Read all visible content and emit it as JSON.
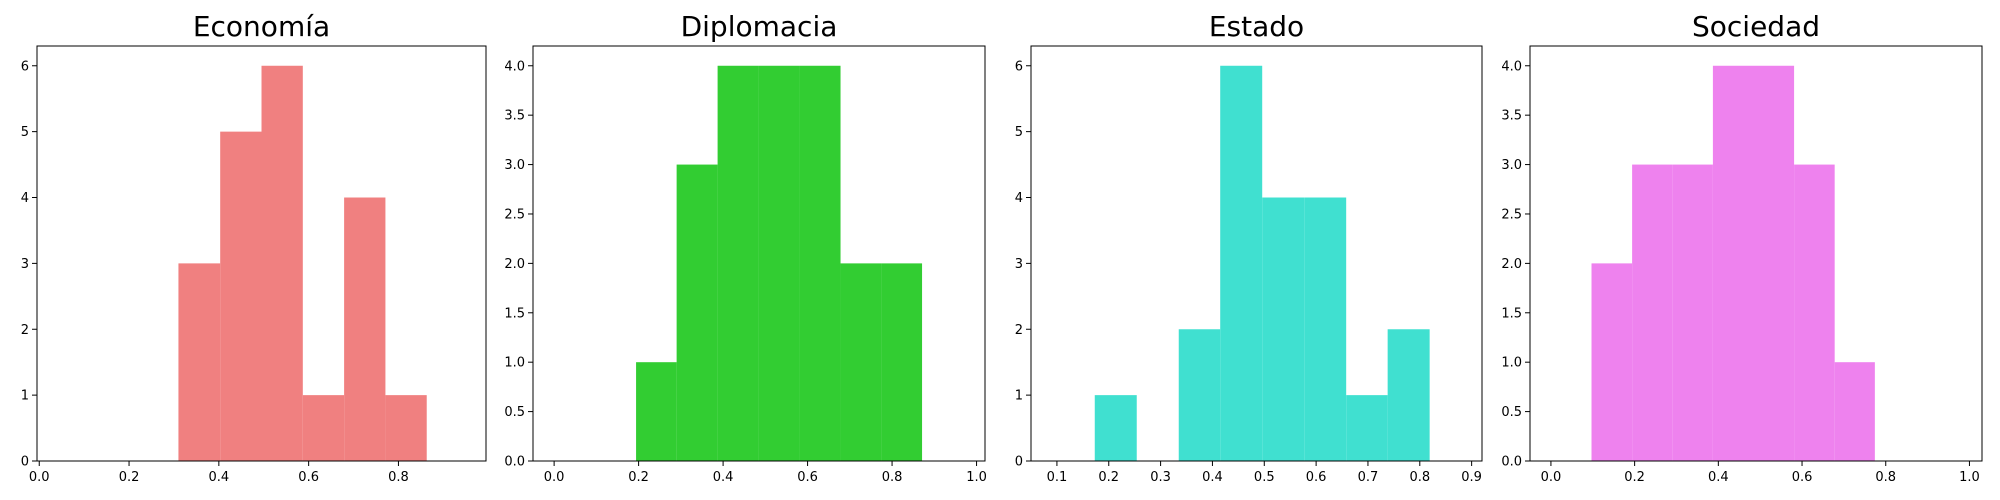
{
  "chart_data": [
    {
      "type": "bar",
      "title": "Economía",
      "color": "#f08080",
      "xlim": [
        -0.005,
        0.995
      ],
      "ylim": [
        0,
        6.3
      ],
      "xticks": [
        "0.0",
        "0.2",
        "0.4",
        "0.6",
        "0.8"
      ],
      "xtick_values": [
        0.0,
        0.2,
        0.4,
        0.6,
        0.8
      ],
      "yticks": [
        "0",
        "1",
        "2",
        "3",
        "4",
        "5",
        "6"
      ],
      "ytick_values": [
        0,
        1,
        2,
        3,
        4,
        5,
        6
      ],
      "bins": [
        [
          0.31,
          0.403
        ],
        [
          0.403,
          0.495
        ],
        [
          0.495,
          0.587
        ],
        [
          0.587,
          0.679
        ],
        [
          0.679,
          0.771
        ],
        [
          0.771,
          0.863
        ]
      ],
      "values": [
        3,
        5,
        6,
        1,
        4,
        1
      ]
    },
    {
      "type": "bar",
      "title": "Diplomacia",
      "color": "#32cd32",
      "xlim": [
        -0.05,
        1.02
      ],
      "ylim": [
        0,
        4.2
      ],
      "xticks": [
        "0.0",
        "0.2",
        "0.4",
        "0.6",
        "0.8",
        "1.0"
      ],
      "xtick_values": [
        0.0,
        0.2,
        0.4,
        0.6,
        0.8,
        1.0
      ],
      "yticks": [
        "0.0",
        "0.5",
        "1.0",
        "1.5",
        "2.0",
        "2.5",
        "3.0",
        "3.5",
        "4.0"
      ],
      "ytick_values": [
        0.0,
        0.5,
        1.0,
        1.5,
        2.0,
        2.5,
        3.0,
        3.5,
        4.0
      ],
      "bins": [
        [
          0.194,
          0.29
        ],
        [
          0.29,
          0.387
        ],
        [
          0.387,
          0.484
        ],
        [
          0.484,
          0.581
        ],
        [
          0.581,
          0.678
        ],
        [
          0.678,
          0.774
        ],
        [
          0.774,
          0.871
        ]
      ],
      "values": [
        1,
        3,
        4,
        4,
        4,
        2,
        2
      ]
    },
    {
      "type": "bar",
      "title": "Estado",
      "color": "#40e0d0",
      "xlim": [
        0.05,
        0.92
      ],
      "ylim": [
        0,
        6.3
      ],
      "xticks": [
        "0.1",
        "0.2",
        "0.3",
        "0.4",
        "0.5",
        "0.6",
        "0.7",
        "0.8",
        "0.9"
      ],
      "xtick_values": [
        0.1,
        0.2,
        0.3,
        0.4,
        0.5,
        0.6,
        0.7,
        0.8,
        0.9
      ],
      "yticks": [
        "0",
        "1",
        "2",
        "3",
        "4",
        "5",
        "6"
      ],
      "ytick_values": [
        0,
        1,
        2,
        3,
        4,
        5,
        6
      ],
      "bins": [
        [
          0.173,
          0.254
        ],
        [
          0.254,
          0.335
        ],
        [
          0.335,
          0.415
        ],
        [
          0.415,
          0.496
        ],
        [
          0.496,
          0.577
        ],
        [
          0.577,
          0.658
        ],
        [
          0.658,
          0.738
        ],
        [
          0.738,
          0.819
        ]
      ],
      "values": [
        1,
        0,
        2,
        6,
        4,
        4,
        1,
        2
      ]
    },
    {
      "type": "bar",
      "title": "Sociedad",
      "color": "#ee82ee",
      "xlim": [
        -0.05,
        1.03
      ],
      "ylim": [
        0,
        4.2
      ],
      "xticks": [
        "0.0",
        "0.2",
        "0.4",
        "0.6",
        "0.8",
        "1.0"
      ],
      "xtick_values": [
        0.0,
        0.2,
        0.4,
        0.6,
        0.8,
        1.0
      ],
      "yticks": [
        "0.0",
        "0.5",
        "1.0",
        "1.5",
        "2.0",
        "2.5",
        "3.0",
        "3.5",
        "4.0"
      ],
      "ytick_values": [
        0.0,
        0.5,
        1.0,
        1.5,
        2.0,
        2.5,
        3.0,
        3.5,
        4.0
      ],
      "bins": [
        [
          0.097,
          0.194
        ],
        [
          0.194,
          0.29
        ],
        [
          0.29,
          0.387
        ],
        [
          0.387,
          0.484
        ],
        [
          0.484,
          0.581
        ],
        [
          0.581,
          0.678
        ],
        [
          0.678,
          0.774
        ]
      ],
      "values": [
        2,
        3,
        3,
        4,
        4,
        3,
        1
      ]
    }
  ]
}
